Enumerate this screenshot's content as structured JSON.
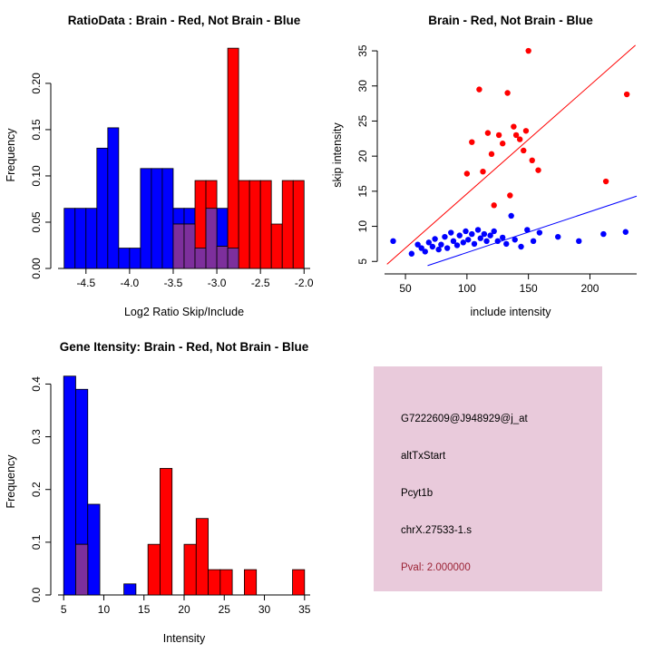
{
  "chart_data": [
    {
      "type": "histogram",
      "title": "RatioData : Brain - Red, Not Brain - Blue",
      "xlabel": "Log2 Ratio Skip/Include",
      "ylabel": "Frequency",
      "xlim": [
        -4.82,
        -1.93
      ],
      "ylim": [
        0,
        0.245
      ],
      "xticks": [
        -4.5,
        -4.0,
        -3.5,
        -3.0,
        -2.5,
        -2.0
      ],
      "xtick_labels": [
        "-4.5",
        "-4.0",
        "-3.5",
        "-3.0",
        "-2.5",
        "-2.0"
      ],
      "yticks": [
        0,
        0.05,
        0.1,
        0.15,
        0.2
      ],
      "ytick_labels": [
        "0.00",
        "0.05",
        "0.10",
        "0.15",
        "0.20"
      ],
      "binwidth": 0.125,
      "grid": false,
      "series": [
        {
          "name": "not_brain",
          "color": "#0000FF",
          "bins": [
            [
              -4.75,
              0.065
            ],
            [
              -4.625,
              0.065
            ],
            [
              -4.5,
              0.065
            ],
            [
              -4.375,
              0.13
            ],
            [
              -4.25,
              0.152
            ],
            [
              -4.125,
              0.022
            ],
            [
              -4.0,
              0.022
            ],
            [
              -3.875,
              0.108
            ],
            [
              -3.75,
              0.108
            ],
            [
              -3.625,
              0.108
            ],
            [
              -3.5,
              0.065
            ],
            [
              -3.375,
              0.065
            ],
            [
              -3.25,
              0.022
            ],
            [
              -3.125,
              0.065
            ],
            [
              -3.0,
              0.065
            ],
            [
              -2.875,
              0.022
            ]
          ]
        },
        {
          "name": "brain",
          "color": "#FF0000",
          "bins": [
            [
              -3.5,
              0.048
            ],
            [
              -3.375,
              0.048
            ],
            [
              -3.25,
              0.095
            ],
            [
              -3.125,
              0.095
            ],
            [
              -3.0,
              0.024
            ],
            [
              -2.875,
              0.238
            ],
            [
              -2.75,
              0.095
            ],
            [
              -2.625,
              0.095
            ],
            [
              -2.5,
              0.095
            ],
            [
              -2.375,
              0.048
            ],
            [
              -2.25,
              0.095
            ],
            [
              -2.125,
              0.095
            ]
          ]
        },
        {
          "name": "overlap",
          "color": "#7D2F9C",
          "bins": [
            [
              -3.5,
              0.048
            ],
            [
              -3.375,
              0.048
            ],
            [
              -3.25,
              0.022
            ],
            [
              -3.125,
              0.065
            ],
            [
              -3.0,
              0.024
            ],
            [
              -2.875,
              0.022
            ]
          ]
        }
      ]
    },
    {
      "type": "scatter",
      "title": "Brain - Red, Not Brain - Blue",
      "xlabel": "include intensity",
      "ylabel": "skip intensity",
      "xlim": [
        33,
        238
      ],
      "ylim": [
        4.0,
        36.3
      ],
      "xticks": [
        50,
        100,
        150,
        200
      ],
      "xtick_labels": [
        "50",
        "100",
        "150",
        "200"
      ],
      "yticks": [
        5,
        10,
        15,
        20,
        25,
        30,
        35
      ],
      "ytick_labels": [
        "5",
        "10",
        "15",
        "20",
        "25",
        "30",
        "35"
      ],
      "grid": false,
      "series": [
        {
          "name": "brain",
          "color": "#FF0000",
          "points": [
            [
              100,
              17.5
            ],
            [
              104,
              22
            ],
            [
              110,
              29.5
            ],
            [
              113,
              17.8
            ],
            [
              117,
              23.3
            ],
            [
              120,
              20.3
            ],
            [
              122,
              13
            ],
            [
              126,
              23
            ],
            [
              129,
              21.8
            ],
            [
              133,
              29
            ],
            [
              135,
              14.4
            ],
            [
              138,
              24.2
            ],
            [
              140,
              23
            ],
            [
              143,
              22.4
            ],
            [
              146,
              20.8
            ],
            [
              148,
              23.6
            ],
            [
              150,
              35
            ],
            [
              153,
              19.4
            ],
            [
              158,
              18
            ],
            [
              213,
              16.4
            ],
            [
              230,
              28.8
            ]
          ]
        },
        {
          "name": "not_brain",
          "color": "#0000FF",
          "points": [
            [
              40,
              7.9
            ],
            [
              55,
              6.1
            ],
            [
              60,
              7.4
            ],
            [
              63,
              6.9
            ],
            [
              66,
              6.4
            ],
            [
              69,
              7.7
            ],
            [
              72,
              7.1
            ],
            [
              74,
              8.2
            ],
            [
              77,
              6.7
            ],
            [
              79,
              7.4
            ],
            [
              82,
              8.5
            ],
            [
              84,
              6.9
            ],
            [
              87,
              9.1
            ],
            [
              89,
              7.9
            ],
            [
              92,
              7.3
            ],
            [
              94,
              8.7
            ],
            [
              97,
              7.7
            ],
            [
              99,
              9.3
            ],
            [
              101,
              8.1
            ],
            [
              104,
              8.9
            ],
            [
              106,
              7.5
            ],
            [
              109,
              9.5
            ],
            [
              111,
              8.3
            ],
            [
              114,
              8.9
            ],
            [
              116,
              7.9
            ],
            [
              119,
              8.7
            ],
            [
              122,
              9.3
            ],
            [
              125,
              7.9
            ],
            [
              129,
              8.4
            ],
            [
              132,
              7.5
            ],
            [
              136,
              11.5
            ],
            [
              139,
              8.1
            ],
            [
              144,
              7.1
            ],
            [
              149,
              9.5
            ],
            [
              154,
              7.9
            ],
            [
              159,
              9.1
            ],
            [
              174,
              8.5
            ],
            [
              191,
              7.9
            ],
            [
              211,
              8.9
            ],
            [
              229,
              9.2
            ]
          ]
        }
      ],
      "lines": [
        {
          "name": "brain-fit",
          "color": "#FF0000",
          "x1": 35,
          "y1": 4.6,
          "x2": 237,
          "y2": 35.8
        },
        {
          "name": "not-brain-fit",
          "color": "#0000FF",
          "x1": 68,
          "y1": 4.4,
          "x2": 238,
          "y2": 14.3
        }
      ]
    },
    {
      "type": "histogram",
      "title": "Gene Itensity: Brain - Red, Not Brain - Blue",
      "xlabel": "Intensity",
      "ylabel": "Frequency",
      "xlim": [
        4.3,
        35.7
      ],
      "ylim": [
        0,
        0.43
      ],
      "xticks": [
        5,
        10,
        15,
        20,
        25,
        30,
        35
      ],
      "xtick_labels": [
        "5",
        "10",
        "15",
        "20",
        "25",
        "30",
        "35"
      ],
      "yticks": [
        0,
        0.1,
        0.2,
        0.3,
        0.4
      ],
      "ytick_labels": [
        "0.0",
        "0.1",
        "0.2",
        "0.3",
        "0.4"
      ],
      "binwidth": 1.5,
      "grid": false,
      "series": [
        {
          "name": "not_brain",
          "color": "#0000FF",
          "bins": [
            [
              5,
              0.415
            ],
            [
              6.5,
              0.39
            ],
            [
              8,
              0.172
            ],
            [
              12.5,
              0.021
            ]
          ]
        },
        {
          "name": "brain",
          "color": "#FF0000",
          "bins": [
            [
              6.5,
              0.096
            ],
            [
              15.5,
              0.096
            ],
            [
              17,
              0.24
            ],
            [
              20,
              0.096
            ],
            [
              21.5,
              0.145
            ],
            [
              23,
              0.048
            ],
            [
              24.5,
              0.048
            ],
            [
              27.5,
              0.048
            ],
            [
              33.5,
              0.048
            ]
          ]
        },
        {
          "name": "overlap",
          "color": "#7D2F9C",
          "bins": [
            [
              6.5,
              0.096
            ]
          ]
        }
      ]
    }
  ],
  "info_panel": {
    "background": "#E9CADB",
    "pval_color": "#9B2335",
    "lines": {
      "probe_id": "G7222609@J948929@j_at",
      "event_type": "altTxStart",
      "gene": "Pcyt1b",
      "location": "chrX.27533-1.s",
      "pval": "Pval: 2.000000"
    }
  }
}
